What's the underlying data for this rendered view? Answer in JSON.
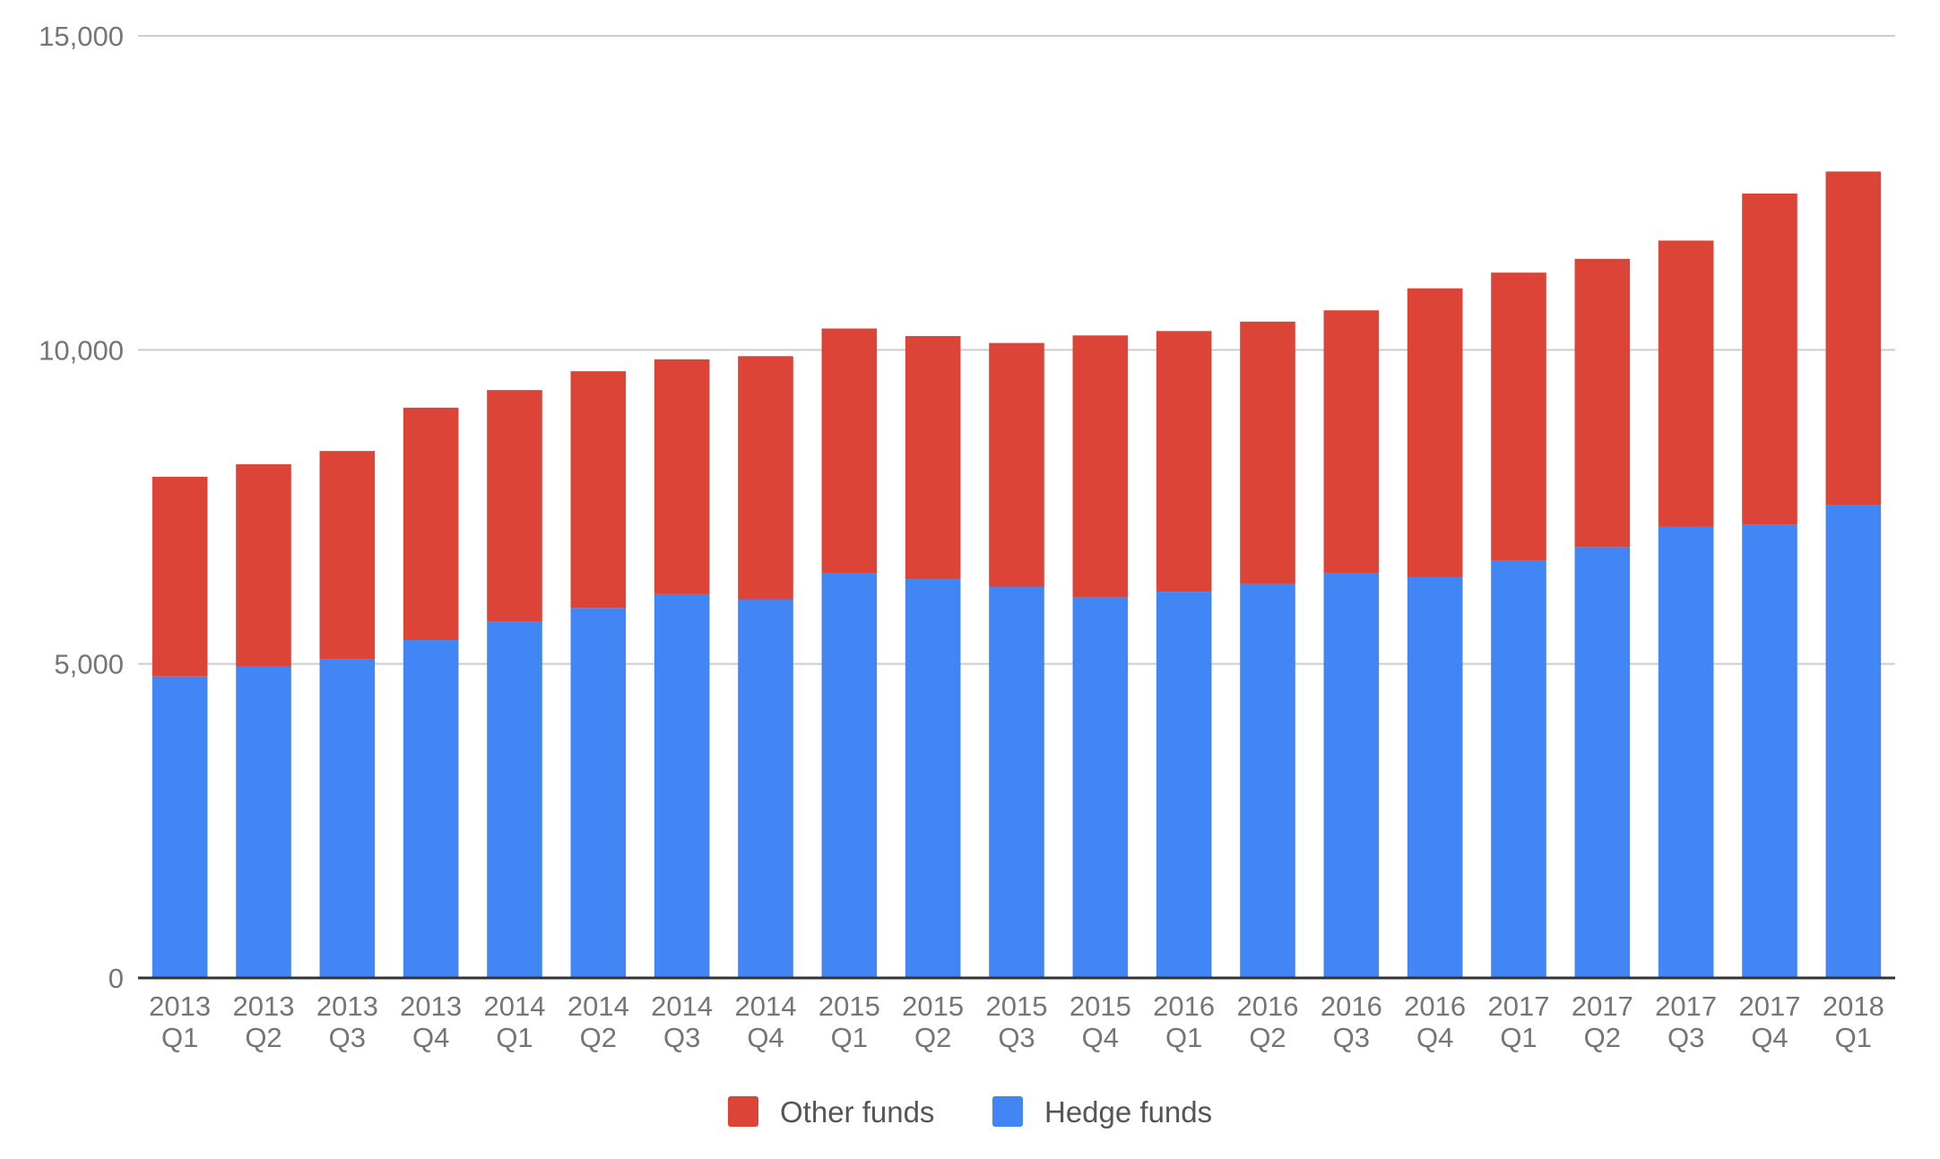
{
  "chart_data": {
    "type": "bar",
    "stacked": true,
    "title": "",
    "xlabel": "",
    "ylabel": "",
    "ylim": [
      0,
      15000
    ],
    "yticks": [
      0,
      5000,
      10000,
      15000
    ],
    "ytick_labels": [
      "0",
      "5,000",
      "10,000",
      "15,000"
    ],
    "grid": true,
    "legend_position": "bottom",
    "categories": [
      [
        "2013",
        "Q1"
      ],
      [
        "2013",
        "Q2"
      ],
      [
        "2013",
        "Q3"
      ],
      [
        "2013",
        "Q4"
      ],
      [
        "2014",
        "Q1"
      ],
      [
        "2014",
        "Q2"
      ],
      [
        "2014",
        "Q3"
      ],
      [
        "2014",
        "Q4"
      ],
      [
        "2015",
        "Q1"
      ],
      [
        "2015",
        "Q2"
      ],
      [
        "2015",
        "Q3"
      ],
      [
        "2015",
        "Q4"
      ],
      [
        "2016",
        "Q1"
      ],
      [
        "2016",
        "Q2"
      ],
      [
        "2016",
        "Q3"
      ],
      [
        "2016",
        "Q4"
      ],
      [
        "2017",
        "Q1"
      ],
      [
        "2017",
        "Q2"
      ],
      [
        "2017",
        "Q3"
      ],
      [
        "2017",
        "Q4"
      ],
      [
        "2018",
        "Q1"
      ]
    ],
    "series": [
      {
        "name": "Hedge funds",
        "color": "#4285f4",
        "values": [
          4800,
          4960,
          5080,
          5380,
          5680,
          5890,
          6110,
          6030,
          6440,
          6350,
          6230,
          6060,
          6150,
          6280,
          6440,
          6380,
          6650,
          6860,
          7180,
          7220,
          7530
        ]
      },
      {
        "name": "Other funds",
        "color": "#db4437",
        "values": [
          3180,
          3220,
          3310,
          3700,
          3680,
          3770,
          3740,
          3870,
          3900,
          3870,
          3880,
          4170,
          4150,
          4170,
          4190,
          4600,
          4580,
          4590,
          4560,
          5270,
          5310
        ]
      }
    ],
    "legend": [
      {
        "label": "Other funds",
        "color": "#db4437"
      },
      {
        "label": "Hedge funds",
        "color": "#4285f4"
      }
    ]
  }
}
